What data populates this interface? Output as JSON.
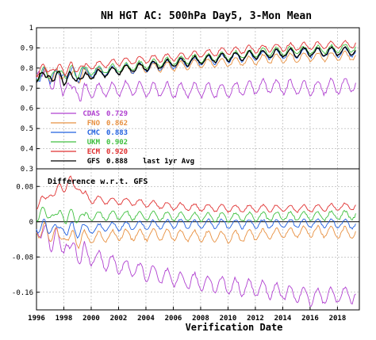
{
  "chart_data": [
    {
      "type": "line",
      "title": "NH HGT AC: 500hPa Day5, 3-Mon Mean",
      "ylim": [
        0.3,
        1.0
      ],
      "yticks": [
        0.3,
        0.4,
        0.5,
        0.6,
        0.7,
        0.8,
        0.9,
        1.0
      ],
      "ytick_labels": [
        "0.3",
        "0.4",
        "0.5",
        "0.6",
        "0.7",
        "0.8",
        "0.9",
        "1"
      ],
      "xlim": [
        1996,
        2019.6
      ],
      "grid": "dashed",
      "legend_position": "lower-left",
      "legend_note": "last 1yr Avg",
      "series": [
        {
          "name": "CDAS",
          "avg": "0.729",
          "color": "#b040d0",
          "base": [
            [
              1996,
              0.78
            ],
            [
              1999,
              0.68
            ],
            [
              2002,
              0.7
            ],
            [
              2006,
              0.69
            ],
            [
              2010,
              0.69
            ],
            [
              2013,
              0.71
            ],
            [
              2016,
              0.7
            ],
            [
              2019.5,
              0.72
            ]
          ],
          "amp": 0.035
        },
        {
          "name": "FNO",
          "avg": "0.862",
          "color": "#e89040",
          "base": [
            [
              1996,
              0.77
            ],
            [
              1999,
              0.76
            ],
            [
              2002,
              0.79
            ],
            [
              2006,
              0.81
            ],
            [
              2010,
              0.83
            ],
            [
              2013,
              0.845
            ],
            [
              2016,
              0.855
            ],
            [
              2019.5,
              0.86
            ]
          ],
          "amp": 0.022
        },
        {
          "name": "CMC",
          "avg": "0.883",
          "color": "#2060e0",
          "base": [
            [
              1996,
              0.76
            ],
            [
              1999,
              0.77
            ],
            [
              2002,
              0.79
            ],
            [
              2006,
              0.82
            ],
            [
              2010,
              0.85
            ],
            [
              2013,
              0.865
            ],
            [
              2016,
              0.875
            ],
            [
              2019.5,
              0.88
            ]
          ],
          "amp": 0.022
        },
        {
          "name": "UKM",
          "avg": "0.902",
          "color": "#40c040",
          "base": [
            [
              1996,
              0.77
            ],
            [
              1999,
              0.78
            ],
            [
              2002,
              0.8
            ],
            [
              2006,
              0.835
            ],
            [
              2010,
              0.86
            ],
            [
              2013,
              0.88
            ],
            [
              2016,
              0.89
            ],
            [
              2019.5,
              0.9
            ]
          ],
          "amp": 0.02
        },
        {
          "name": "ECM",
          "avg": "0.920",
          "color": "#e03030",
          "base": [
            [
              1996,
              0.79
            ],
            [
              1999,
              0.8
            ],
            [
              2002,
              0.83
            ],
            [
              2006,
              0.855
            ],
            [
              2010,
              0.885
            ],
            [
              2013,
              0.9
            ],
            [
              2016,
              0.91
            ],
            [
              2019.5,
              0.92
            ]
          ],
          "amp": 0.018
        },
        {
          "name": "GFS",
          "avg": "0.888",
          "color": "#000000",
          "base": [
            [
              1996,
              0.76
            ],
            [
              1999,
              0.75
            ],
            [
              2002,
              0.79
            ],
            [
              2006,
              0.825
            ],
            [
              2010,
              0.855
            ],
            [
              2013,
              0.87
            ],
            [
              2016,
              0.88
            ],
            [
              2019.5,
              0.885
            ]
          ],
          "amp": 0.02
        }
      ]
    },
    {
      "type": "line",
      "title": "Difference w.r.t. GFS",
      "xlabel": "Verification Date",
      "ylim": [
        -0.2,
        0.12
      ],
      "yticks": [
        -0.16,
        -0.08,
        0,
        0.08
      ],
      "ytick_labels": [
        "-0.16",
        "-0.08",
        "0",
        "0.08"
      ],
      "xlim": [
        1996,
        2019.6
      ],
      "xticks": [
        1996,
        1998,
        2000,
        2002,
        2004,
        2006,
        2008,
        2010,
        2012,
        2014,
        2016,
        2018
      ],
      "xtick_labels": [
        "1996",
        "1998",
        "2000",
        "2002",
        "2004",
        "2006",
        "2008",
        "2010",
        "2012",
        "2014",
        "2016",
        "2018"
      ],
      "zero_line": 0,
      "series": [
        {
          "name": "CDAS",
          "color": "#b040d0",
          "base": [
            [
              1996,
              -0.02
            ],
            [
              1999,
              -0.07
            ],
            [
              2002,
              -0.1
            ],
            [
              2006,
              -0.13
            ],
            [
              2010,
              -0.145
            ],
            [
              2013,
              -0.155
            ],
            [
              2016,
              -0.17
            ],
            [
              2019.5,
              -0.165
            ]
          ],
          "amp": 0.018
        },
        {
          "name": "FNO",
          "color": "#e89040",
          "base": [
            [
              1996,
              -0.02
            ],
            [
              1999,
              -0.04
            ],
            [
              2002,
              -0.03
            ],
            [
              2006,
              -0.03
            ],
            [
              2010,
              -0.035
            ],
            [
              2013,
              -0.028
            ],
            [
              2016,
              -0.022
            ],
            [
              2019.5,
              -0.025
            ]
          ],
          "amp": 0.012
        },
        {
          "name": "CMC",
          "color": "#2060e0",
          "base": [
            [
              1996,
              -0.01
            ],
            [
              1999,
              -0.02
            ],
            [
              2002,
              -0.01
            ],
            [
              2006,
              -0.005
            ],
            [
              2010,
              -0.005
            ],
            [
              2013,
              -0.005
            ],
            [
              2016,
              -0.003
            ],
            [
              2019.5,
              -0.005
            ]
          ],
          "amp": 0.01
        },
        {
          "name": "UKM",
          "color": "#40c040",
          "base": [
            [
              1996,
              0.02
            ],
            [
              1999,
              0.01
            ],
            [
              2002,
              0.015
            ],
            [
              2006,
              0.012
            ],
            [
              2010,
              0.01
            ],
            [
              2013,
              0.012
            ],
            [
              2016,
              0.013
            ],
            [
              2019.5,
              0.015
            ]
          ],
          "amp": 0.01
        },
        {
          "name": "ECM",
          "color": "#e03030",
          "base": [
            [
              1996,
              0.04
            ],
            [
              1998.5,
              0.09
            ],
            [
              2000,
              0.05
            ],
            [
              2003,
              0.045
            ],
            [
              2006,
              0.035
            ],
            [
              2010,
              0.03
            ],
            [
              2013,
              0.03
            ],
            [
              2016,
              0.03
            ],
            [
              2019.5,
              0.035
            ]
          ],
          "amp": 0.008
        }
      ]
    }
  ]
}
